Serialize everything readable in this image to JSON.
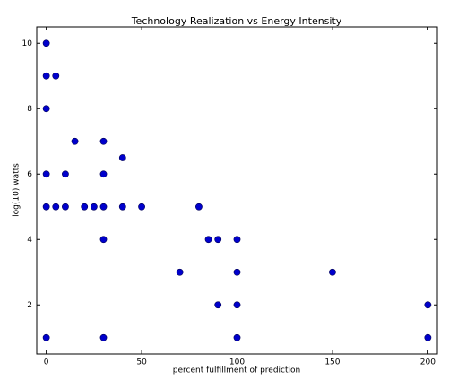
{
  "chart_data": {
    "type": "scatter",
    "title": "Technology Realization vs Energy Intensity",
    "x_label": "percent fulfillment of prediction",
    "y_label": "log(10) watts",
    "x": [
      0,
      0,
      5,
      0,
      15,
      30,
      40,
      0,
      10,
      30,
      0,
      5,
      10,
      20,
      25,
      30,
      40,
      50,
      80,
      30,
      85,
      90,
      100,
      70,
      100,
      150,
      90,
      100,
      200,
      0,
      30,
      100,
      200
    ],
    "values": [
      10,
      9,
      9,
      8,
      7,
      7,
      6.5,
      6,
      6,
      6,
      5,
      5,
      5,
      5,
      5,
      5,
      5,
      5,
      5,
      4,
      4,
      4,
      4,
      3,
      3,
      3,
      2,
      2,
      2,
      1,
      1,
      1,
      1
    ],
    "color": "#0000cc",
    "xlim": [
      -5,
      205
    ],
    "ylim": [
      0.5,
      10.5
    ],
    "xticks": [
      0,
      50,
      100,
      150,
      200
    ],
    "yticks": [
      2,
      4,
      6,
      8,
      10
    ],
    "grid": false
  }
}
